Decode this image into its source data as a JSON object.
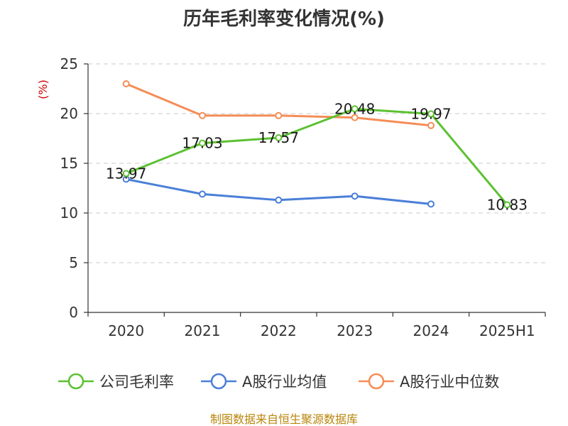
{
  "chart_data": {
    "type": "line",
    "title": "历年毛利率变化情况(%)",
    "ylabel": "(%)",
    "xlabel": "",
    "categories": [
      "2020",
      "2021",
      "2022",
      "2023",
      "2024",
      "2025H1"
    ],
    "ylim": [
      0,
      25
    ],
    "yticks": [
      0,
      5,
      10,
      15,
      20,
      25
    ],
    "grid": true,
    "legend_position": "bottom",
    "series": [
      {
        "name": "公司毛利率",
        "color": "#5cc132",
        "values": [
          13.97,
          17.03,
          17.57,
          20.48,
          19.97,
          10.83
        ],
        "labels": [
          "13.97",
          "17.03",
          "17.57",
          "20.48",
          "19.97",
          "10.83"
        ]
      },
      {
        "name": "A股行业均值",
        "color": "#4a7fd8",
        "values": [
          13.4,
          11.9,
          11.3,
          11.7,
          10.9,
          null
        ]
      },
      {
        "name": "A股行业中位数",
        "color": "#f58d56",
        "values": [
          23.0,
          19.8,
          19.8,
          19.6,
          18.8,
          null
        ]
      }
    ]
  },
  "source": "制图数据来自恒生聚源数据库"
}
